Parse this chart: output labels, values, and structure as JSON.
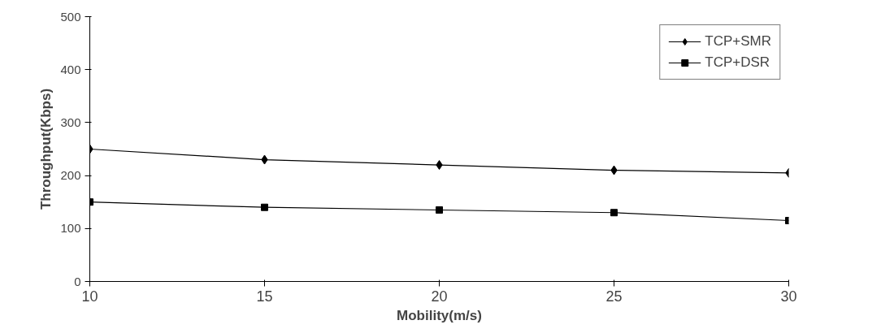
{
  "chart_data": {
    "type": "line",
    "xlabel": "Mobility(m/s)",
    "ylabel": "Throughput(Kbps)",
    "x": [
      10,
      15,
      20,
      25,
      30
    ],
    "series": [
      {
        "name": "TCP+SMR",
        "color": "#000000",
        "marker": "diamond",
        "values": [
          250,
          230,
          220,
          210,
          205
        ]
      },
      {
        "name": "TCP+DSR",
        "color": "#000000",
        "marker": "square",
        "values": [
          150,
          140,
          135,
          130,
          115
        ]
      }
    ],
    "xlim": [
      10,
      30
    ],
    "xticks": [
      10,
      15,
      20,
      25,
      30
    ],
    "ylim": [
      0,
      500
    ],
    "yticks": [
      0,
      100,
      200,
      300,
      400,
      500
    ],
    "grid": false,
    "legend": "top right",
    "line_style": "solid"
  }
}
